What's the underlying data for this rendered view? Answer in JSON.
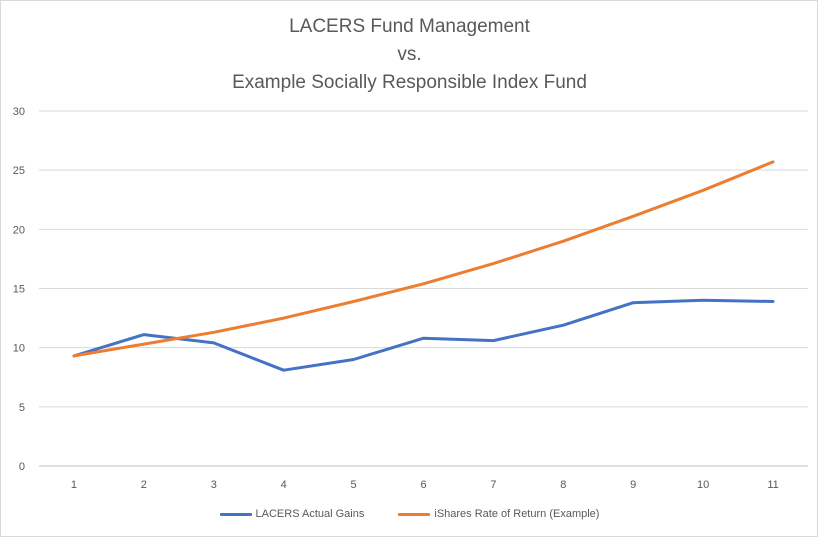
{
  "chart_data": {
    "type": "line",
    "title_lines": [
      "LACERS Fund Management",
      "vs.",
      "Example Socially Responsible Index Fund"
    ],
    "xlabel": "",
    "ylabel": "",
    "x": [
      1,
      2,
      3,
      4,
      5,
      6,
      7,
      8,
      9,
      10,
      11
    ],
    "x_tick_labels": [
      "1",
      "2",
      "3",
      "4",
      "5",
      "6",
      "7",
      "8",
      "9",
      "10",
      "11"
    ],
    "y_tick_labels": [
      "0",
      "5",
      "10",
      "15",
      "20",
      "25",
      "30"
    ],
    "ylim": [
      0,
      30
    ],
    "grid": "horizontal",
    "legend_position": "bottom",
    "series": [
      {
        "name": "LACERS Actual Gains",
        "color": "#4472c4",
        "values": [
          9.3,
          11.1,
          10.4,
          8.1,
          9.0,
          10.8,
          10.6,
          11.9,
          13.8,
          14.0,
          13.9
        ]
      },
      {
        "name": "iShares Rate of Return (Example)",
        "color": "#ed7d31",
        "values": [
          9.3,
          10.3,
          11.3,
          12.5,
          13.9,
          15.4,
          17.1,
          19.0,
          21.1,
          23.3,
          25.7
        ]
      }
    ]
  }
}
